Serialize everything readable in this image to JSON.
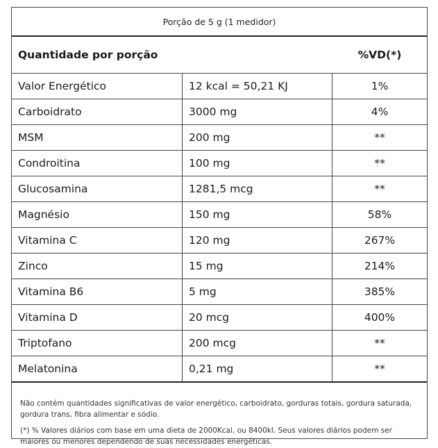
{
  "serving": "Porção de 5 g (1 medidor)",
  "header": {
    "left": "Quantidade por porção",
    "right": "%VD(*)"
  },
  "rows": [
    {
      "name": "Valor Energético",
      "amount": "12 kcal = 50,21 KJ",
      "vd": "1%"
    },
    {
      "name": "Carboidrato",
      "amount": "3000 mg",
      "vd": "4%"
    },
    {
      "name": "MSM",
      "amount": "200 mg",
      "vd": "**"
    },
    {
      "name": "Condroitina",
      "amount": "100 mg",
      "vd": "**"
    },
    {
      "name": "Glucosamina",
      "amount": "1281,5 mcg",
      "vd": "**"
    },
    {
      "name": "Magnésio",
      "amount": "150 mg",
      "vd": "58%"
    },
    {
      "name": "Vitamina C",
      "amount": "120 mg",
      "vd": "267%"
    },
    {
      "name": "Zinco",
      "amount": "15 mg",
      "vd": "214%"
    },
    {
      "name": "Vitamina B6",
      "amount": "5 mg",
      "vd": "385%"
    },
    {
      "name": "Vitamina D",
      "amount": "20 mcg",
      "vd": "400%"
    },
    {
      "name": "Triptofano",
      "amount": "200 mcg",
      "vd": "**"
    },
    {
      "name": "Melatonina",
      "amount": "0,21 mg",
      "vd": "**"
    }
  ],
  "footer": {
    "note1": "Não contém quantidades significativas de valor energético, carboidrato, gorduras totais, gordura saturada, gordura trans, fibra alimentar e sódio.",
    "note2": "(*) % Valores diários com base em uma dieta de 2000Kcal, ou 8400kl. Seus valores diários podem ser maiores ou menores dependendo de suas necessidades energéticas."
  }
}
